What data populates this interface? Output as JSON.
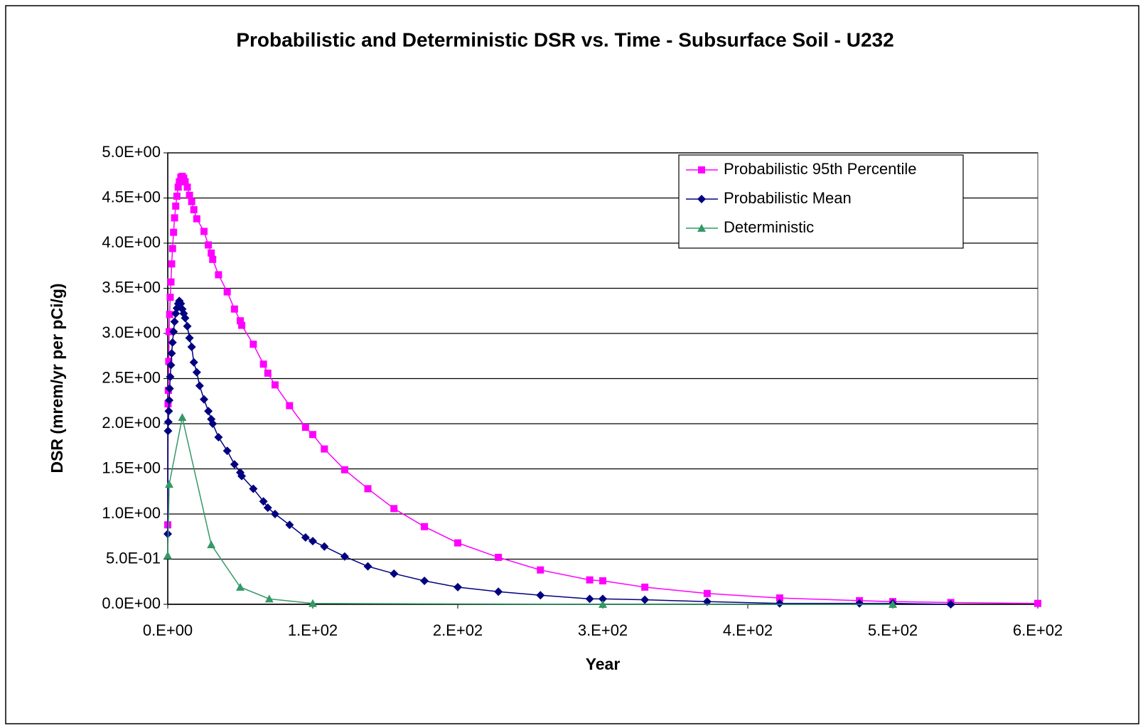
{
  "chart_data": {
    "type": "line",
    "title": "Probabilistic and Deterministic DSR vs. Time - Subsurface Soil - U232",
    "x_label": "Year",
    "y_label": "DSR (mrem/yr per pCi/g)",
    "xlim": [
      0,
      600
    ],
    "ylim": [
      0,
      5
    ],
    "xticks": [
      {
        "value": 0,
        "label": "0.E+00"
      },
      {
        "value": 100,
        "label": "1.E+02"
      },
      {
        "value": 200,
        "label": "2.E+02"
      },
      {
        "value": 300,
        "label": "3.E+02"
      },
      {
        "value": 400,
        "label": "4.E+02"
      },
      {
        "value": 500,
        "label": "5.E+02"
      },
      {
        "value": 600,
        "label": "6.E+02"
      }
    ],
    "yticks": [
      {
        "value": 0,
        "label": "0.0E+00"
      },
      {
        "value": 0.5,
        "label": "5.0E-01"
      },
      {
        "value": 1,
        "label": "1.0E+00"
      },
      {
        "value": 1.5,
        "label": "1.5E+00"
      },
      {
        "value": 2,
        "label": "2.0E+00"
      },
      {
        "value": 2.5,
        "label": "2.5E+00"
      },
      {
        "value": 3,
        "label": "3.0E+00"
      },
      {
        "value": 3.5,
        "label": "3.5E+00"
      },
      {
        "value": 4,
        "label": "4.0E+00"
      },
      {
        "value": 4.5,
        "label": "4.5E+00"
      },
      {
        "value": 5,
        "label": "5.0E+00"
      }
    ],
    "grid": true,
    "legend": "top-right",
    "series": [
      {
        "name": "Probabilistic 95th Percentile",
        "color": "#ff00ff",
        "marker": "square",
        "x": [
          0,
          0.2,
          0.4,
          0.7,
          1,
          1.3,
          1.7,
          2.2,
          2.7,
          3.3,
          4,
          4.7,
          5.5,
          6.3,
          7.2,
          8,
          9,
          10,
          11,
          12,
          13.5,
          15,
          16.5,
          18,
          20,
          25,
          28,
          30,
          31,
          35,
          41,
          46,
          50,
          51,
          59,
          66,
          69,
          74,
          84,
          95,
          100,
          108,
          122,
          138,
          156,
          177,
          200,
          228,
          257,
          291,
          300,
          329,
          372,
          422,
          477,
          500,
          540,
          600
        ],
        "values": [
          0.88,
          2.22,
          2.37,
          2.69,
          3.02,
          3.21,
          3.4,
          3.57,
          3.77,
          3.94,
          4.12,
          4.28,
          4.41,
          4.52,
          4.62,
          4.68,
          4.73,
          4.74,
          4.72,
          4.68,
          4.62,
          4.53,
          4.46,
          4.37,
          4.27,
          4.13,
          3.98,
          3.89,
          3.82,
          3.65,
          3.46,
          3.27,
          3.14,
          3.09,
          2.88,
          2.66,
          2.56,
          2.43,
          2.2,
          1.96,
          1.88,
          1.72,
          1.49,
          1.28,
          1.06,
          0.86,
          0.68,
          0.52,
          0.38,
          0.27,
          0.26,
          0.19,
          0.12,
          0.07,
          0.04,
          0.03,
          0.02,
          0.01
        ]
      },
      {
        "name": "Probabilistic Mean",
        "color": "#000080",
        "marker": "diamond",
        "x": [
          0,
          0.2,
          0.4,
          0.7,
          1,
          1.3,
          1.7,
          2.2,
          2.7,
          3.3,
          4,
          4.7,
          5.5,
          6.3,
          7.2,
          8,
          9,
          10,
          11,
          12,
          13.5,
          15,
          16.5,
          18,
          20,
          22,
          25,
          28,
          30,
          31,
          35,
          41,
          46,
          50,
          51,
          59,
          66,
          69,
          74,
          84,
          95,
          100,
          108,
          122,
          138,
          156,
          177,
          200,
          228,
          257,
          291,
          300,
          329,
          372,
          422,
          477,
          500,
          540
        ],
        "values": [
          0.78,
          1.92,
          2.02,
          2.14,
          2.26,
          2.39,
          2.52,
          2.65,
          2.78,
          2.9,
          3.02,
          3.13,
          3.22,
          3.28,
          3.33,
          3.36,
          3.33,
          3.27,
          3.22,
          3.17,
          3.08,
          2.95,
          2.85,
          2.68,
          2.57,
          2.42,
          2.27,
          2.14,
          2.05,
          2.0,
          1.85,
          1.7,
          1.55,
          1.46,
          1.42,
          1.28,
          1.14,
          1.07,
          1.0,
          0.88,
          0.74,
          0.7,
          0.64,
          0.53,
          0.42,
          0.34,
          0.26,
          0.19,
          0.14,
          0.1,
          0.06,
          0.06,
          0.05,
          0.03,
          0.01,
          0.01,
          0.01,
          0
        ]
      },
      {
        "name": "Deterministic",
        "color": "#339966",
        "marker": "triangle",
        "x": [
          0,
          1,
          10,
          30,
          50,
          70,
          100,
          300,
          500
        ],
        "values": [
          0.54,
          1.33,
          2.07,
          0.66,
          0.19,
          0.06,
          0.01,
          0,
          0
        ]
      }
    ]
  }
}
